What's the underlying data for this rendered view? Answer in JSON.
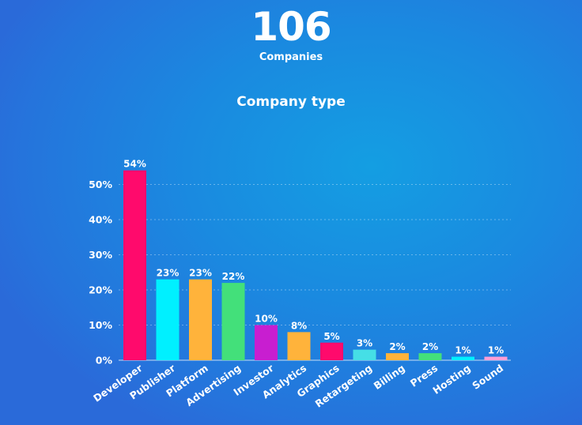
{
  "header": {
    "count": "106",
    "count_label": "Companies"
  },
  "chart_data": {
    "type": "bar",
    "title": "Company type",
    "categories": [
      "Developer",
      "Publisher",
      "Platform",
      "Advertising",
      "Investor",
      "Analytics",
      "Graphics",
      "Retargeting",
      "Billing",
      "Press",
      "Hosting",
      "Sound"
    ],
    "values": [
      54,
      23,
      23,
      22,
      10,
      8,
      5,
      3,
      2,
      2,
      1,
      1
    ],
    "value_labels": [
      "54%",
      "23%",
      "23%",
      "22%",
      "10%",
      "8%",
      "5%",
      "3%",
      "2%",
      "2%",
      "1%",
      "1%"
    ],
    "colors": [
      "#ff0a6c",
      "#00f0ff",
      "#ffb33b",
      "#43e07a",
      "#c81ed0",
      "#ffb33b",
      "#ff0a6c",
      "#45dfe6",
      "#ffb33b",
      "#43e07a",
      "#00f0ff",
      "#ff9ed6"
    ],
    "yticks": [
      0,
      10,
      20,
      30,
      40,
      50
    ],
    "ytick_labels": [
      "0%",
      "10%",
      "20%",
      "30%",
      "40%",
      "50%"
    ],
    "ylim": [
      0,
      54
    ],
    "xlabel": "",
    "ylabel": "",
    "grid": true,
    "legend": "none"
  }
}
